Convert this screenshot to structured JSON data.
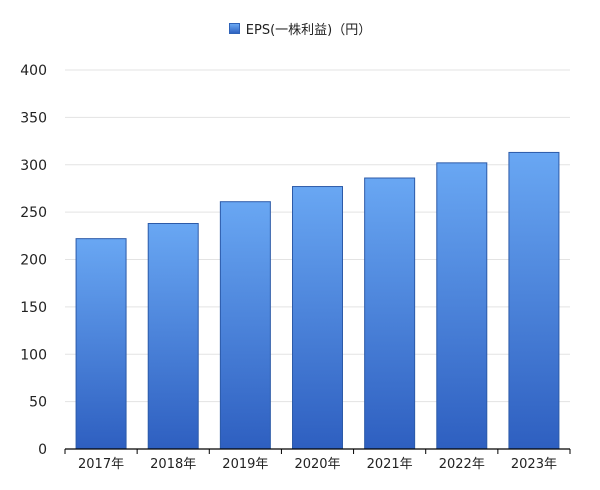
{
  "chart_data": {
    "type": "bar",
    "categories": [
      "2017年",
      "2018年",
      "2019年",
      "2020年",
      "2021年",
      "2022年",
      "2023年"
    ],
    "series": [
      {
        "name": "EPS(一株利益)（円）",
        "values": [
          222,
          238,
          261,
          277,
          286,
          302,
          313
        ]
      }
    ],
    "title": "",
    "xlabel": "",
    "ylabel": "",
    "ylim": [
      0,
      400
    ],
    "yticks": [
      0,
      50,
      100,
      150,
      200,
      250,
      300,
      350,
      400
    ],
    "grid": true,
    "legend_position": "top-center",
    "colors": {
      "bar_top": "#69a7f3",
      "bar_bottom": "#2e5fc0",
      "bar_border": "#2c5aa8",
      "grid": "#e3e3e3",
      "axis": "#000000"
    }
  }
}
